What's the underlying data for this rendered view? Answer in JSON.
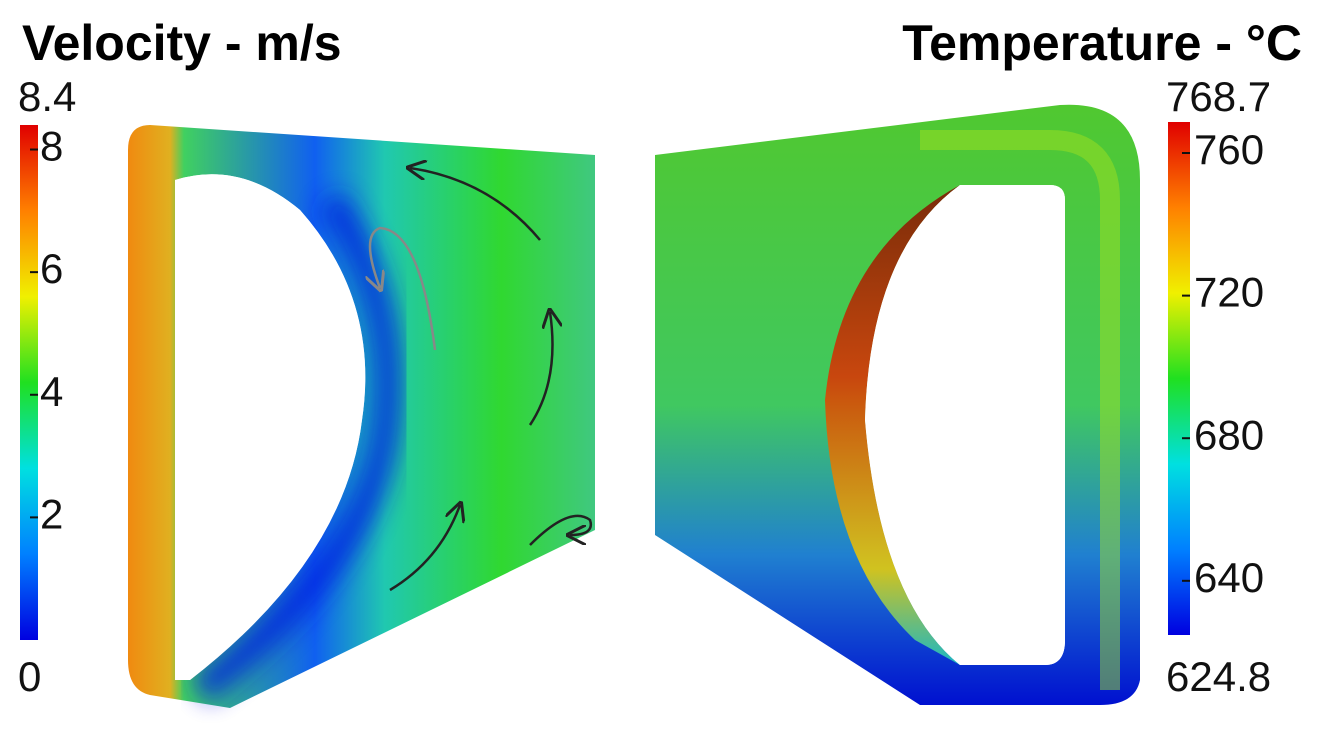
{
  "panels": [
    {
      "title": "Velocity - m/s",
      "colorbar": {
        "min": 0,
        "max": 8.4,
        "ticks": [
          2,
          4,
          6,
          8
        ],
        "colors": [
          "#0000e0",
          "#0080ff",
          "#00e0e0",
          "#20e020",
          "#f0f000",
          "#ff8000",
          "#e00000"
        ]
      }
    },
    {
      "title": "Temperature - °C",
      "colorbar": {
        "min": 624.8,
        "max": 768.7,
        "ticks": [
          640,
          680,
          720,
          760
        ],
        "colors": [
          "#0000e0",
          "#0080ff",
          "#00e0e0",
          "#20e020",
          "#f0f000",
          "#ff8000",
          "#e00000"
        ]
      }
    }
  ]
}
